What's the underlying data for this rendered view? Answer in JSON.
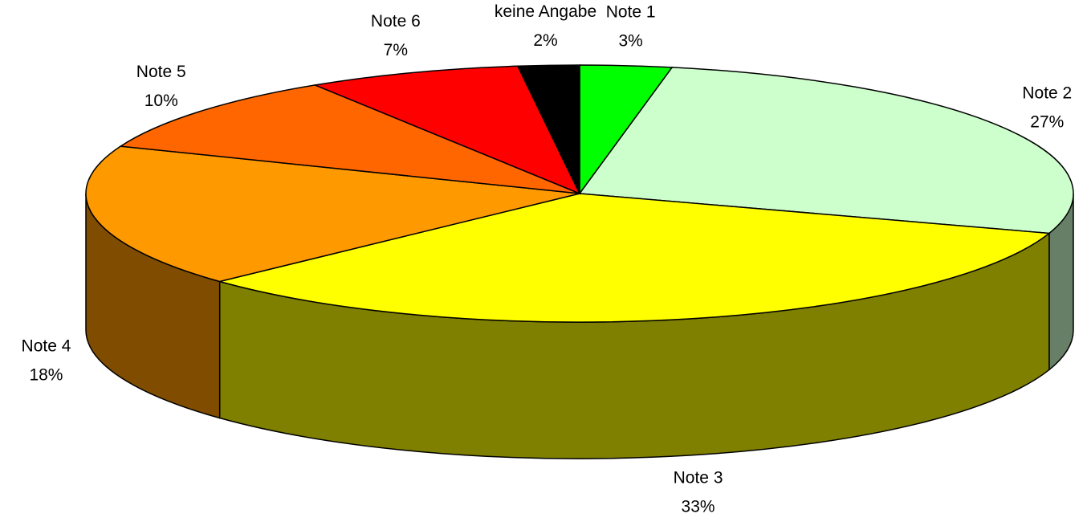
{
  "chart_data": {
    "type": "pie3d",
    "categories": [
      "Note 1",
      "Note 2",
      "Note 3",
      "Note 4",
      "Note 5",
      "Note 6",
      "keine Angabe"
    ],
    "values": [
      3,
      27,
      33,
      18,
      10,
      7,
      2
    ],
    "value_labels": [
      "3%",
      "27%",
      "33%",
      "18%",
      "10%",
      "7%",
      "2%"
    ],
    "colors": [
      "#00ff00",
      "#ccffcc",
      "#ffff00",
      "#ff9900",
      "#ff6600",
      "#ff0000",
      "#000000"
    ]
  }
}
